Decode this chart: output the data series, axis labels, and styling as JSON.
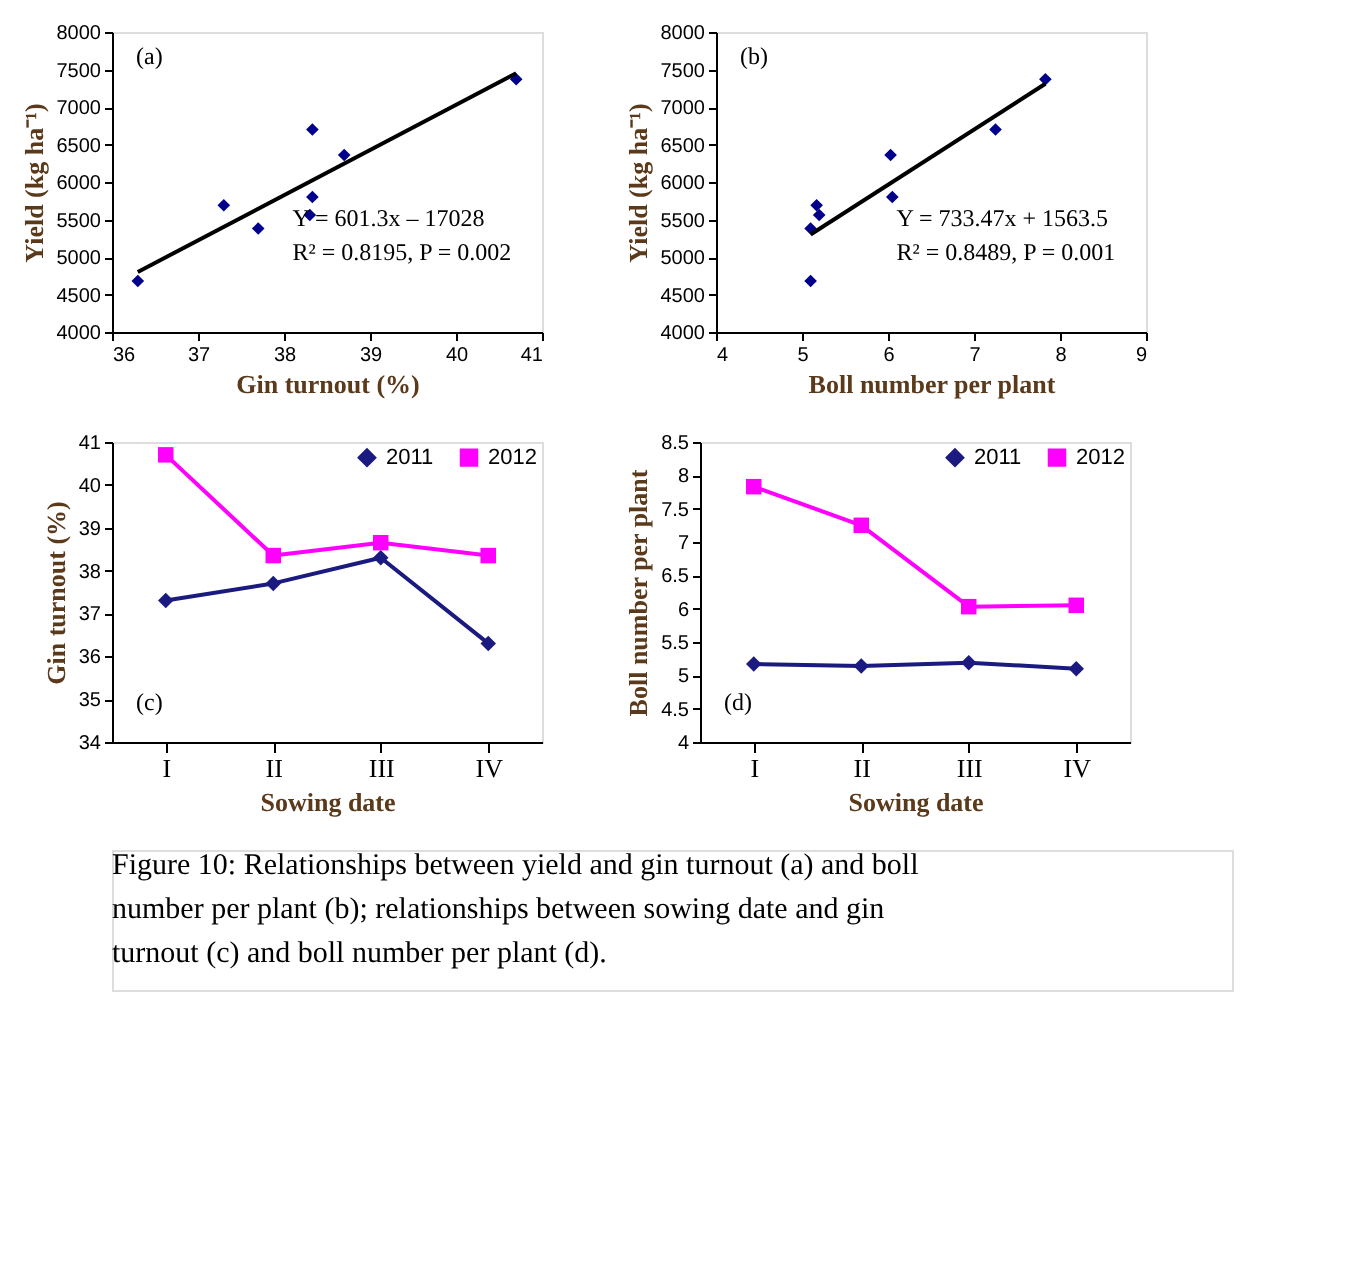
{
  "chart_data": [
    {
      "type": "scatter",
      "xlabel": "Gin turnout (%)",
      "ylabel": "Yield (kg ha⁻¹)",
      "marker": "diamond",
      "grid": false,
      "xlim": [
        36,
        41
      ],
      "xticks": [
        36,
        37,
        38,
        39,
        40,
        41
      ],
      "ylim": [
        4000,
        8000
      ],
      "yticks": [
        4000,
        4500,
        5000,
        5500,
        6000,
        6500,
        7000,
        7500,
        8000
      ],
      "annotations": [
        "(a)",
        "Y = 601.3x – 17028",
        "R² = 0.8195, P = 0.002"
      ],
      "series": [
        {
          "color": "#00008b",
          "x": [
            36.3,
            37.3,
            37.7,
            38.3,
            38.33,
            38.33,
            38.7,
            40.7
          ],
          "values": [
            4680,
            5690,
            5380,
            5560,
            5800,
            6700,
            6360,
            7370
          ]
        },
        {
          "type": "line",
          "color": "#000000",
          "marker": "none",
          "x": [
            36.3,
            40.7
          ],
          "values": [
            4800,
            7450
          ]
        }
      ]
    },
    {
      "type": "scatter",
      "xlabel": "Boll number per plant",
      "ylabel": "Yield (kg ha⁻¹)",
      "marker": "diamond",
      "grid": false,
      "xlim": [
        4,
        9
      ],
      "xticks": [
        4,
        5,
        6,
        7,
        8,
        9
      ],
      "ylim": [
        4000,
        8000
      ],
      "yticks": [
        4000,
        4500,
        5000,
        5500,
        6000,
        6500,
        7000,
        7500,
        8000
      ],
      "annotations": [
        "(b)",
        "Y = 733.47x + 1563.5",
        "R² = 0.8489, P = 0.001"
      ],
      "series": [
        {
          "color": "#00008b",
          "x": [
            5.1,
            5.17,
            5.1,
            5.2,
            6.05,
            7.25,
            6.03,
            7.83
          ],
          "values": [
            4680,
            5690,
            5380,
            5560,
            5800,
            6700,
            6360,
            7370
          ]
        },
        {
          "type": "line",
          "color": "#000000",
          "marker": "none",
          "x": [
            5.1,
            7.83
          ],
          "values": [
            5300,
            7310
          ]
        }
      ]
    },
    {
      "type": "line",
      "xlabel": "Sowing date",
      "ylabel": "Gin turnout (%)",
      "legend": "top right",
      "grid": false,
      "categories": [
        "I",
        "II",
        "III",
        "IV"
      ],
      "ylim": [
        34,
        41
      ],
      "yticks": [
        34,
        35,
        36,
        37,
        38,
        39,
        40,
        41
      ],
      "annotations": [
        "(c)"
      ],
      "series": [
        {
          "name": "2011",
          "color": "#1a1a80",
          "marker": "diamond",
          "values": [
            37.3,
            37.7,
            38.3,
            36.3
          ]
        },
        {
          "name": "2012",
          "color": "#ff00ff",
          "marker": "square",
          "values": [
            40.7,
            38.35,
            38.65,
            38.35
          ]
        }
      ]
    },
    {
      "type": "line",
      "xlabel": "Sowing date",
      "ylabel": "Boll number per plant",
      "legend": "top right",
      "grid": false,
      "categories": [
        "I",
        "II",
        "III",
        "IV"
      ],
      "ylim": [
        4,
        8.5
      ],
      "yticks": [
        4,
        4.5,
        5,
        5.5,
        6,
        6.5,
        7,
        7.5,
        8,
        8.5
      ],
      "annotations": [
        "(d)"
      ],
      "series": [
        {
          "name": "2011",
          "color": "#1a1a80",
          "marker": "diamond",
          "values": [
            5.17,
            5.14,
            5.19,
            5.1
          ]
        },
        {
          "name": "2012",
          "color": "#ff00ff",
          "marker": "square",
          "values": [
            7.83,
            7.25,
            6.03,
            6.05
          ]
        }
      ]
    },
    {
      "type": "other",
      "annotations": [
        "Figure 10: Relationships between yield and gin turnout (a) and boll number per plant (b); relationships between sowing date and gin turnout (c) and boll number per plant (d)."
      ]
    }
  ]
}
